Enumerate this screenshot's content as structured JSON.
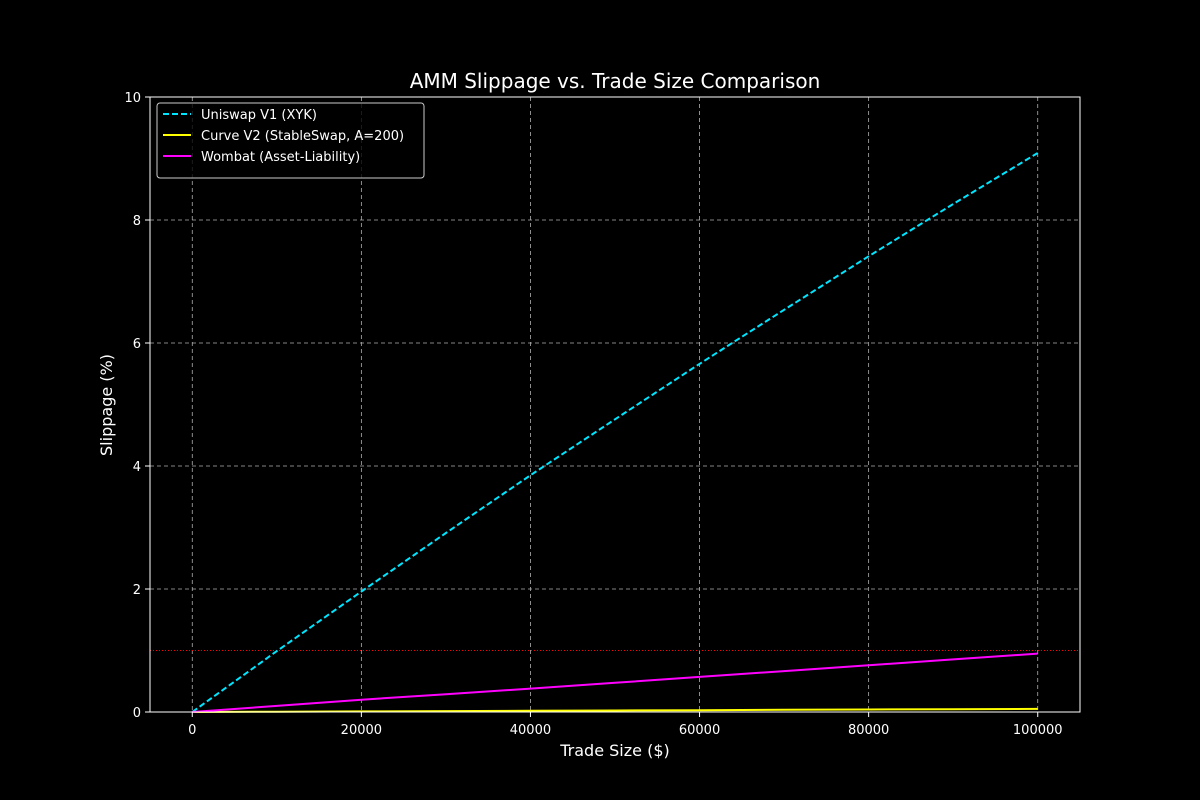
{
  "chart_data": {
    "type": "line",
    "title": "AMM Slippage vs. Trade Size Comparison",
    "xlabel": "Trade Size ($)",
    "ylabel": "Slippage (%)",
    "xlim": [
      -5000,
      105000
    ],
    "ylim": [
      0,
      10
    ],
    "xticks": [
      0,
      20000,
      40000,
      60000,
      80000,
      100000
    ],
    "yticks": [
      0,
      2,
      4,
      6,
      8,
      10
    ],
    "grid": true,
    "legend_position": "top-left",
    "reference_line": {
      "y": 1.0,
      "color": "#ff0000",
      "style": "dotted"
    },
    "series": [
      {
        "name": "Uniswap V1 (XYK)",
        "color": "#00e5ff",
        "style": "dashed",
        "x": [
          0,
          10000,
          20000,
          30000,
          40000,
          50000,
          60000,
          70000,
          80000,
          90000,
          100000
        ],
        "y": [
          0,
          0.99,
          1.96,
          2.91,
          3.85,
          4.76,
          5.66,
          6.54,
          7.41,
          8.26,
          9.09
        ]
      },
      {
        "name": "Curve V2 (StableSwap, A=200)",
        "color": "#ffff00",
        "style": "solid",
        "x": [
          0,
          10000,
          20000,
          30000,
          40000,
          50000,
          60000,
          70000,
          80000,
          90000,
          100000
        ],
        "y": [
          0,
          0.005,
          0.01,
          0.015,
          0.02,
          0.025,
          0.03,
          0.035,
          0.04,
          0.045,
          0.05
        ]
      },
      {
        "name": "Wombat (Asset-Liability)",
        "color": "#ff00ff",
        "style": "solid",
        "x": [
          0,
          10000,
          20000,
          30000,
          40000,
          50000,
          60000,
          70000,
          80000,
          90000,
          100000
        ],
        "y": [
          0,
          0.1,
          0.2,
          0.29,
          0.38,
          0.475,
          0.57,
          0.665,
          0.76,
          0.855,
          0.95
        ]
      }
    ]
  }
}
